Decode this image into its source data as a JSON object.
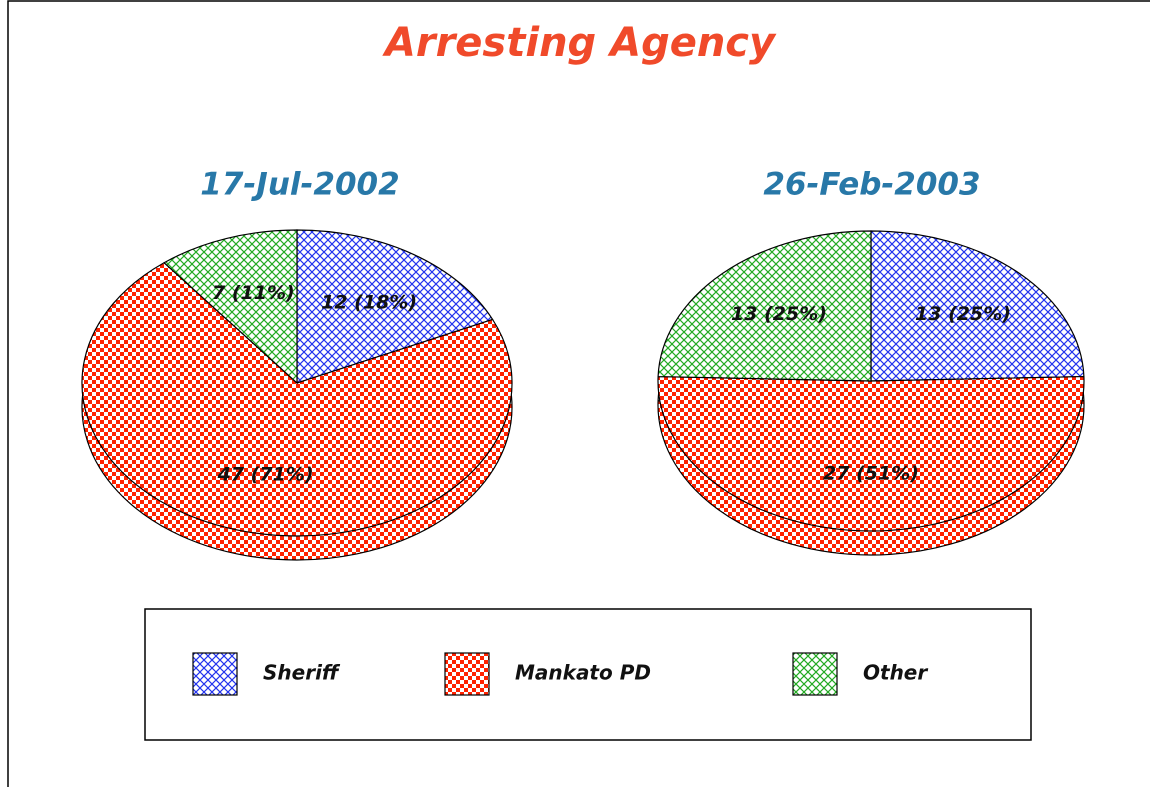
{
  "title": "Arresting Agency",
  "chart_data": [
    {
      "type": "pie",
      "title": "17-Jul-2002",
      "categories": [
        "Sheriff",
        "Mankato PD",
        "Other"
      ],
      "values": [
        12,
        47,
        7
      ],
      "value_labels": [
        "12 (18%)",
        "47 (71%)",
        "7 (11%)"
      ],
      "colors": [
        "#2233ee",
        "#ff2200",
        "#22aa22"
      ]
    },
    {
      "type": "pie",
      "title": "26-Feb-2003",
      "categories": [
        "Sheriff",
        "Mankato PD",
        "Other"
      ],
      "values": [
        13,
        27,
        13
      ],
      "value_labels": [
        "13 (25%)",
        "27 (51%)",
        "13 (25%)"
      ],
      "colors": [
        "#2233ee",
        "#ff2200",
        "#22aa22"
      ]
    }
  ]
}
